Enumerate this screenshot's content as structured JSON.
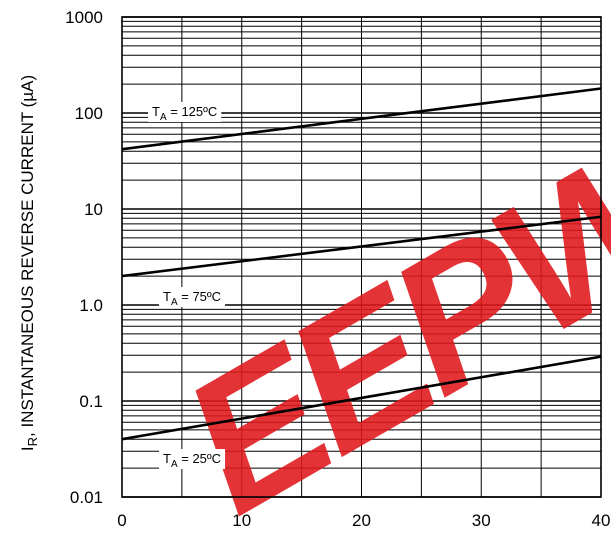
{
  "chart_data": {
    "type": "line",
    "ylabel": "I_R, INSTANTANEOUS REVERSE CURRENT (µA)",
    "ylabel_main": "I",
    "ylabel_sub": "R",
    "ylabel_rest": ", INSTANTANEOUS REVERSE CURRENT (µA)",
    "xlabel": "",
    "xlim": [
      0,
      40
    ],
    "ylim": [
      0.01,
      1000
    ],
    "yscale": "log",
    "grid": true,
    "x_ticks": [
      "0",
      "10",
      "20",
      "30",
      "40"
    ],
    "y_ticks": [
      "0.01",
      "0.1",
      "1.0",
      "10",
      "100",
      "1000"
    ],
    "series": [
      {
        "name": "T_A = 125ºC",
        "label_main": "T",
        "label_sub": "A",
        "label_rest": " = 125ºC",
        "x": [
          0,
          40
        ],
        "values": [
          42,
          180
        ],
        "color": "#000000"
      },
      {
        "name": "T_A = 75ºC",
        "label_main": "T",
        "label_sub": "A",
        "label_rest": " = 75ºC",
        "x": [
          0,
          40
        ],
        "values": [
          2.0,
          8.3
        ],
        "color": "#000000"
      },
      {
        "name": "T_A = 25ºC",
        "label_main": "T",
        "label_sub": "A",
        "label_rest": " = 25ºC",
        "x": [
          0,
          40
        ],
        "values": [
          0.04,
          0.29
        ],
        "color": "#000000"
      }
    ],
    "watermark_text": "EEPW",
    "watermark_color": "#e0181b"
  }
}
